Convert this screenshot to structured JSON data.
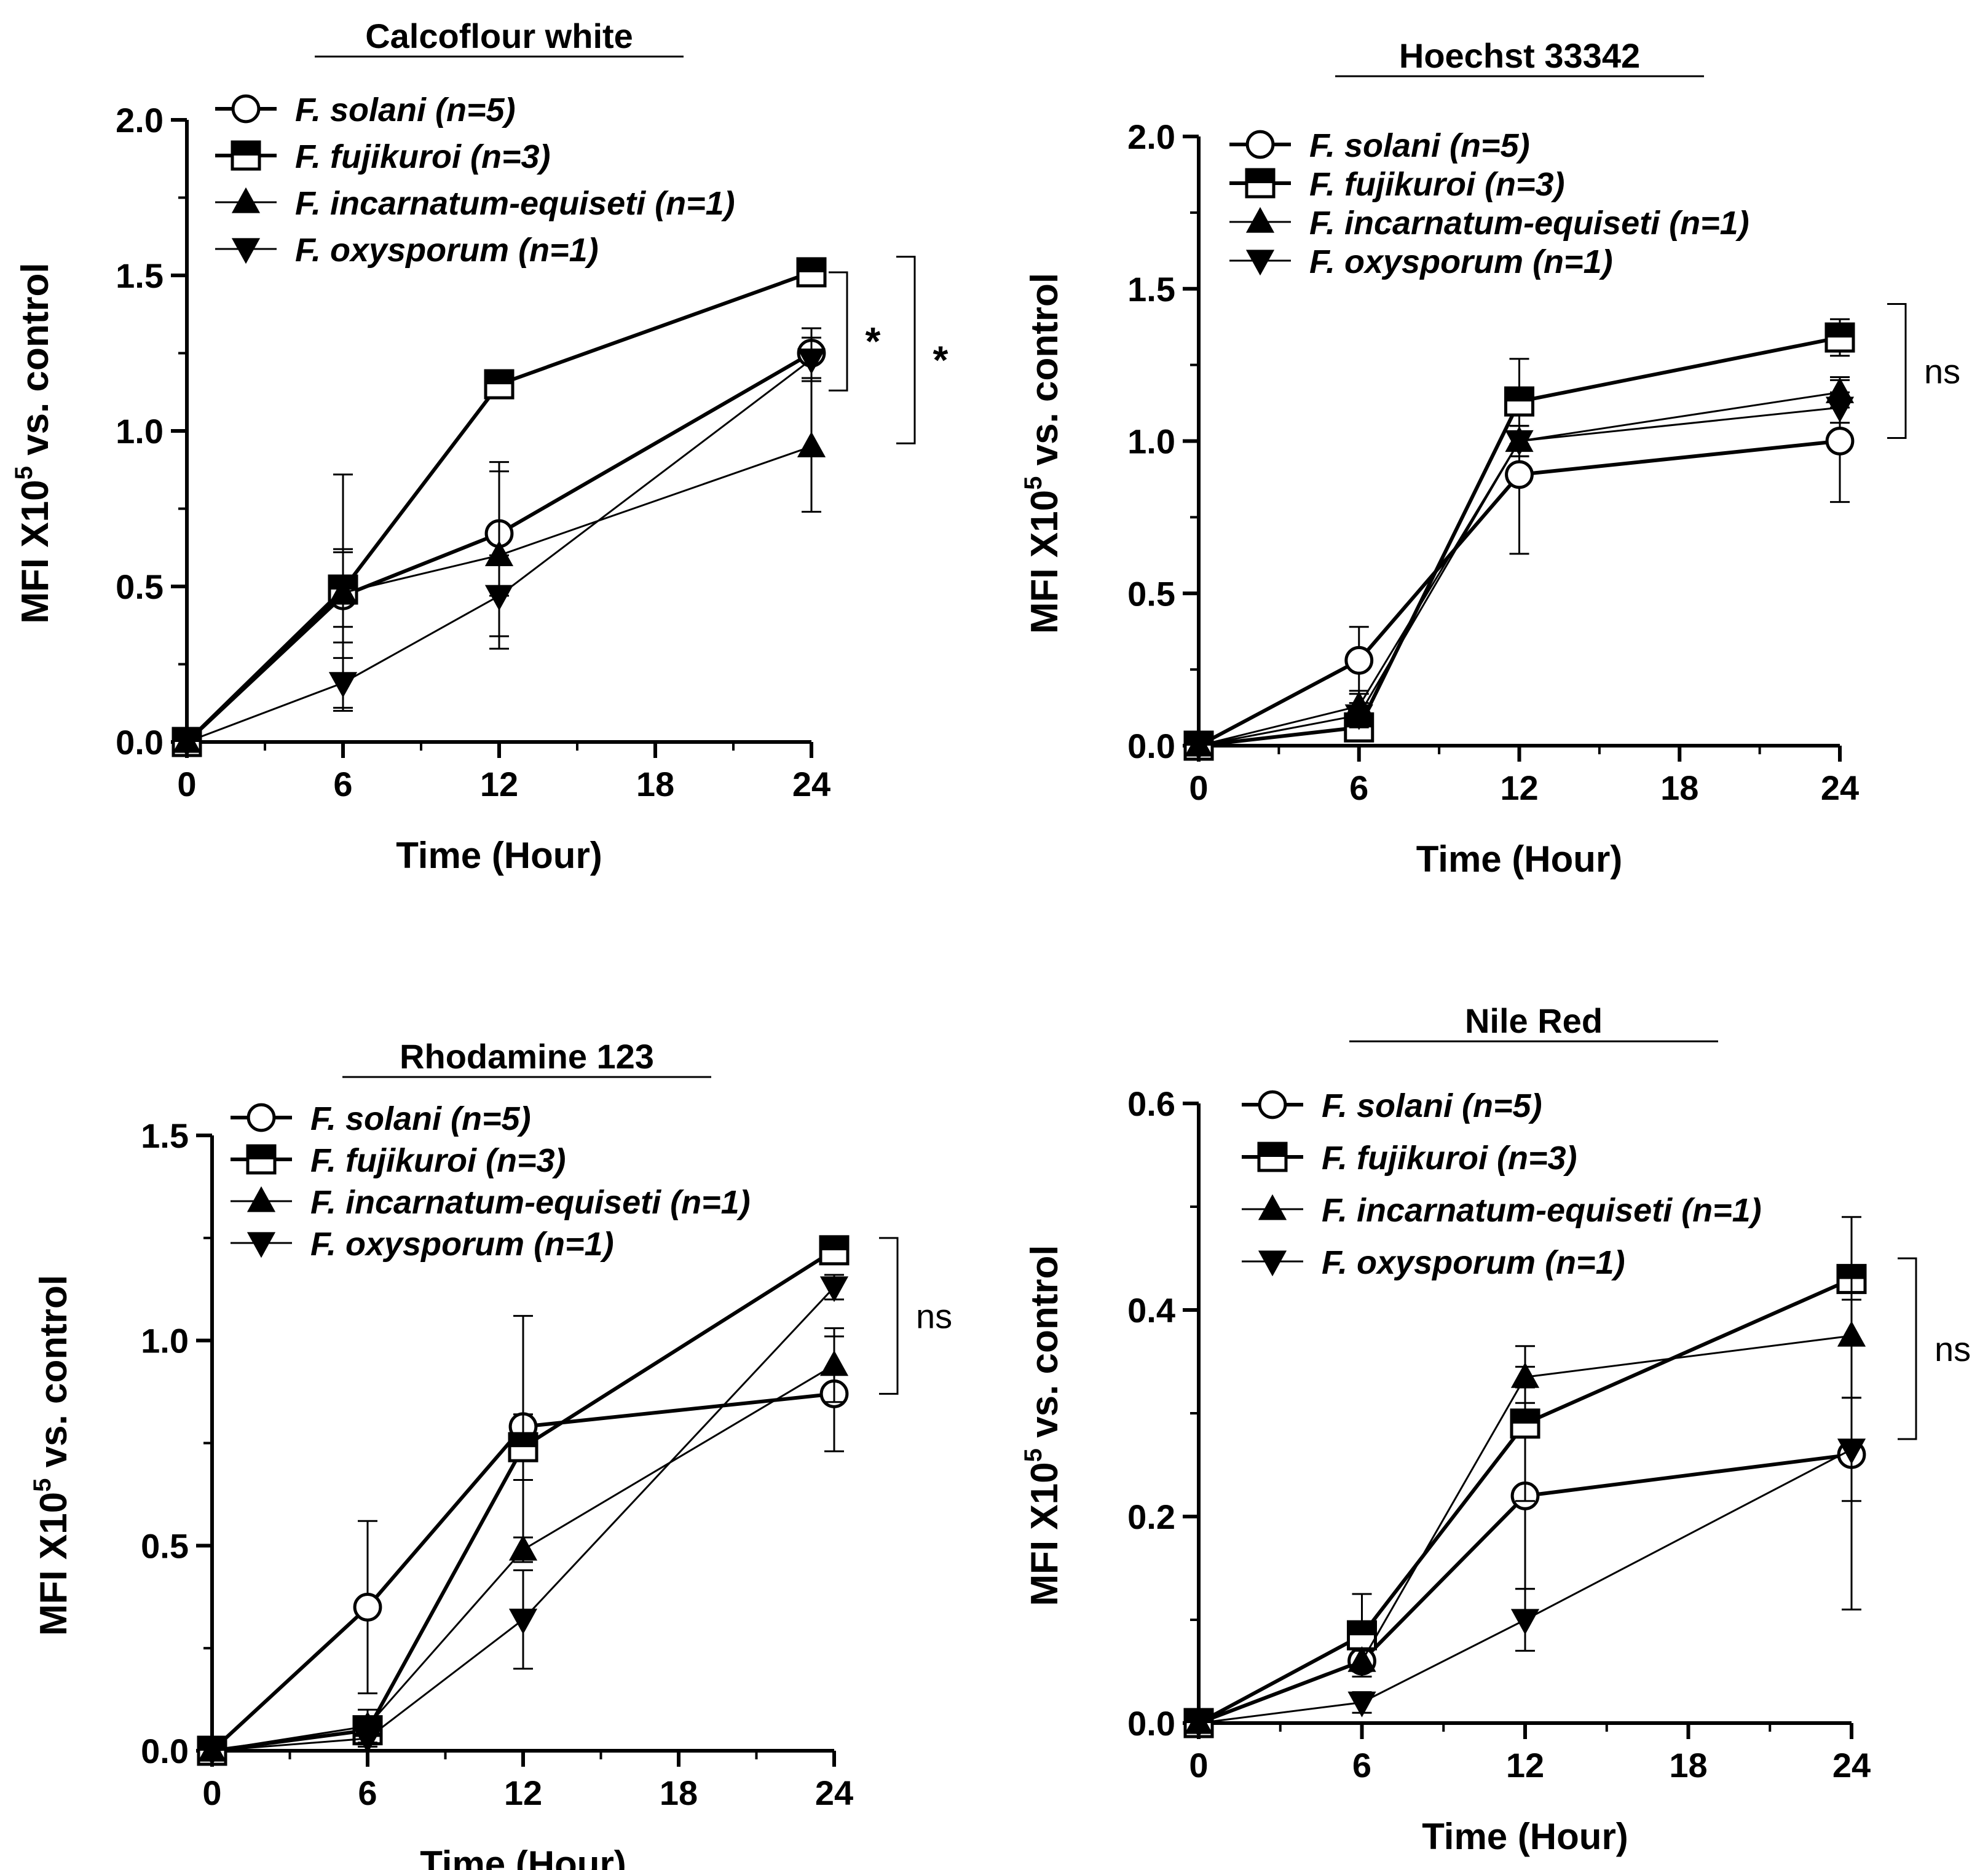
{
  "figure": {
    "x_axis_label": "Time   (Hour)",
    "y_axis_label_prefix": "MFI X10",
    "y_axis_label_exp": "5",
    "y_axis_label_suffix": "  vs. control"
  },
  "colors": {
    "ink": "#000000",
    "background": "#ffffff"
  },
  "chart_data": [
    {
      "type": "line",
      "title": "Calcoflour white",
      "xlabel": "Time   (Hour)",
      "ylabel": "MFI X10^5  vs. control",
      "x": [
        0,
        6,
        12,
        24
      ],
      "xticks": [
        0,
        6,
        12,
        18,
        24
      ],
      "xtick_labels": [
        "0",
        "6",
        "12",
        "18",
        "24"
      ],
      "xlim": [
        0,
        24
      ],
      "ylim": [
        0,
        2.0
      ],
      "yticks": [
        0,
        0.5,
        1.0,
        1.5,
        2.0
      ],
      "ytick_labels": [
        "0.0",
        "0.5",
        "1.0",
        "1.5",
        "2.0"
      ],
      "series": [
        {
          "name": "F. solani (n=5)",
          "marker": "circle-open",
          "values": [
            0,
            0.47,
            0.67,
            1.25
          ],
          "errors": [
            0,
            0.15,
            0.2,
            0.08
          ]
        },
        {
          "name": "F. fujikuroi (n=3)",
          "marker": "square-half",
          "values": [
            0,
            0.49,
            1.15,
            1.51
          ],
          "errors": [
            0,
            0.12,
            0.02,
            0.02
          ]
        },
        {
          "name": "F. incarnatum-equiseti (n=1)",
          "marker": "triangle-up",
          "values": [
            0,
            0.48,
            0.6,
            0.95
          ],
          "errors": [
            0,
            0.38,
            0.3,
            0.21
          ]
        },
        {
          "name": "F. oxysporum  (n=1)",
          "marker": "triangle-down",
          "values": [
            0,
            0.19,
            0.47,
            1.23
          ],
          "errors": [
            0,
            0.08,
            0.13,
            0.07
          ]
        }
      ],
      "annotations": [
        {
          "label": "*",
          "from_value": 1.51,
          "to_value": 1.13
        },
        {
          "label": "*",
          "from_value": 1.56,
          "to_value": 0.96
        }
      ]
    },
    {
      "type": "line",
      "title": "Hoechst 33342",
      "xlabel": "Time   (Hour)",
      "ylabel": "MFI X10^5  vs. control",
      "x": [
        0,
        6,
        12,
        24
      ],
      "xticks": [
        0,
        6,
        12,
        18,
        24
      ],
      "xtick_labels": [
        "0",
        "6",
        "12",
        "18",
        "24"
      ],
      "xlim": [
        0,
        24
      ],
      "ylim": [
        0,
        2.0
      ],
      "yticks": [
        0,
        0.5,
        1.0,
        1.5,
        2.0
      ],
      "ytick_labels": [
        "0.0",
        "0.5",
        "1.0",
        "1.5",
        "2.0"
      ],
      "series": [
        {
          "name": "F. solani (n=5)",
          "marker": "circle-open",
          "values": [
            0,
            0.28,
            0.89,
            1.0
          ],
          "errors": [
            0,
            0.11,
            0.26,
            0.2
          ]
        },
        {
          "name": "F. fujikuroi (n=3)",
          "marker": "square-half",
          "values": [
            0,
            0.06,
            1.13,
            1.34
          ],
          "errors": [
            0,
            0.03,
            0.14,
            0.06
          ]
        },
        {
          "name": "F. incarnatum-equiseti (n=1)",
          "marker": "triangle-up",
          "values": [
            0,
            0.13,
            1.0,
            1.16
          ],
          "errors": [
            0,
            0.05,
            0.05,
            0.05
          ]
        },
        {
          "name": "F. oxysporum  (n=1)",
          "marker": "triangle-down",
          "values": [
            0,
            0.1,
            1.0,
            1.11
          ],
          "errors": [
            0,
            0.04,
            0.05,
            0.05
          ]
        }
      ],
      "annotations": [
        {
          "label": "ns",
          "from_value": 1.45,
          "to_value": 1.01
        }
      ]
    },
    {
      "type": "line",
      "title": "Rhodamine 123",
      "xlabel": "Time   (Hour)",
      "ylabel": "MFI X10^5  vs. control",
      "x": [
        0,
        6,
        12,
        24
      ],
      "xticks": [
        0,
        6,
        12,
        18,
        24
      ],
      "xtick_labels": [
        "0",
        "6",
        "12",
        "18",
        "24"
      ],
      "xlim": [
        0,
        24
      ],
      "ylim": [
        0,
        1.5
      ],
      "yticks": [
        0,
        0.5,
        1.0,
        1.5
      ],
      "ytick_labels": [
        "0.0",
        "0.5",
        "1.0",
        "1.5"
      ],
      "series": [
        {
          "name": "F. solani (n=5)",
          "marker": "circle-open",
          "values": [
            0,
            0.35,
            0.79,
            0.87
          ],
          "errors": [
            0,
            0.21,
            0.27,
            0.14
          ]
        },
        {
          "name": "F. fujikuroi (n=3)",
          "marker": "square-half",
          "values": [
            0,
            0.05,
            0.74,
            1.22
          ],
          "errors": [
            0,
            0.03,
            0.08,
            0.02
          ]
        },
        {
          "name": "F. incarnatum-equiseti (n=1)",
          "marker": "triangle-up",
          "values": [
            0,
            0.06,
            0.49,
            0.94
          ],
          "errors": [
            0,
            0.04,
            0.03,
            0.09
          ]
        },
        {
          "name": "F. oxysporum  (n=1)",
          "marker": "triangle-down",
          "values": [
            0,
            0.03,
            0.32,
            1.13
          ],
          "errors": [
            0,
            0.02,
            0.12,
            0.03
          ]
        }
      ],
      "annotations": [
        {
          "label": "ns",
          "from_value": 1.25,
          "to_value": 0.87
        }
      ]
    },
    {
      "type": "line",
      "title": "Nile Red",
      "xlabel": "Time   (Hour)",
      "ylabel": "MFI X10^5  vs. control",
      "x": [
        0,
        6,
        12,
        24
      ],
      "xticks": [
        0,
        6,
        12,
        18,
        24
      ],
      "xtick_labels": [
        "0",
        "6",
        "12",
        "18",
        "24"
      ],
      "xlim": [
        0,
        24
      ],
      "ylim": [
        0,
        0.6
      ],
      "yticks": [
        0,
        0.2,
        0.4,
        0.6
      ],
      "ytick_labels": [
        "0.0",
        "0.2",
        "0.4",
        "0.6"
      ],
      "series": [
        {
          "name": "F. solani (n=5)",
          "marker": "circle-open",
          "values": [
            0,
            0.06,
            0.22,
            0.26
          ],
          "errors": [
            0,
            0.01,
            0.09,
            0.15
          ]
        },
        {
          "name": "F. fujikuroi (n=3)",
          "marker": "square-half",
          "values": [
            0,
            0.085,
            0.29,
            0.43
          ],
          "errors": [
            0,
            0.04,
            0.075,
            0.06
          ]
        },
        {
          "name": "F. incarnatum-equiseti (n=1)",
          "marker": "triangle-up",
          "values": [
            0,
            0.06,
            0.335,
            0.375
          ],
          "errors": [
            0,
            0.01,
            0.01,
            0.06
          ]
        },
        {
          "name": "F. oxysporum  (n=1)",
          "marker": "triangle-down",
          "values": [
            0,
            0.02,
            0.1,
            0.265
          ],
          "errors": [
            0,
            0.01,
            0.03,
            0.05
          ]
        }
      ],
      "annotations": [
        {
          "label": "ns",
          "from_value": 0.45,
          "to_value": 0.275
        }
      ]
    }
  ]
}
